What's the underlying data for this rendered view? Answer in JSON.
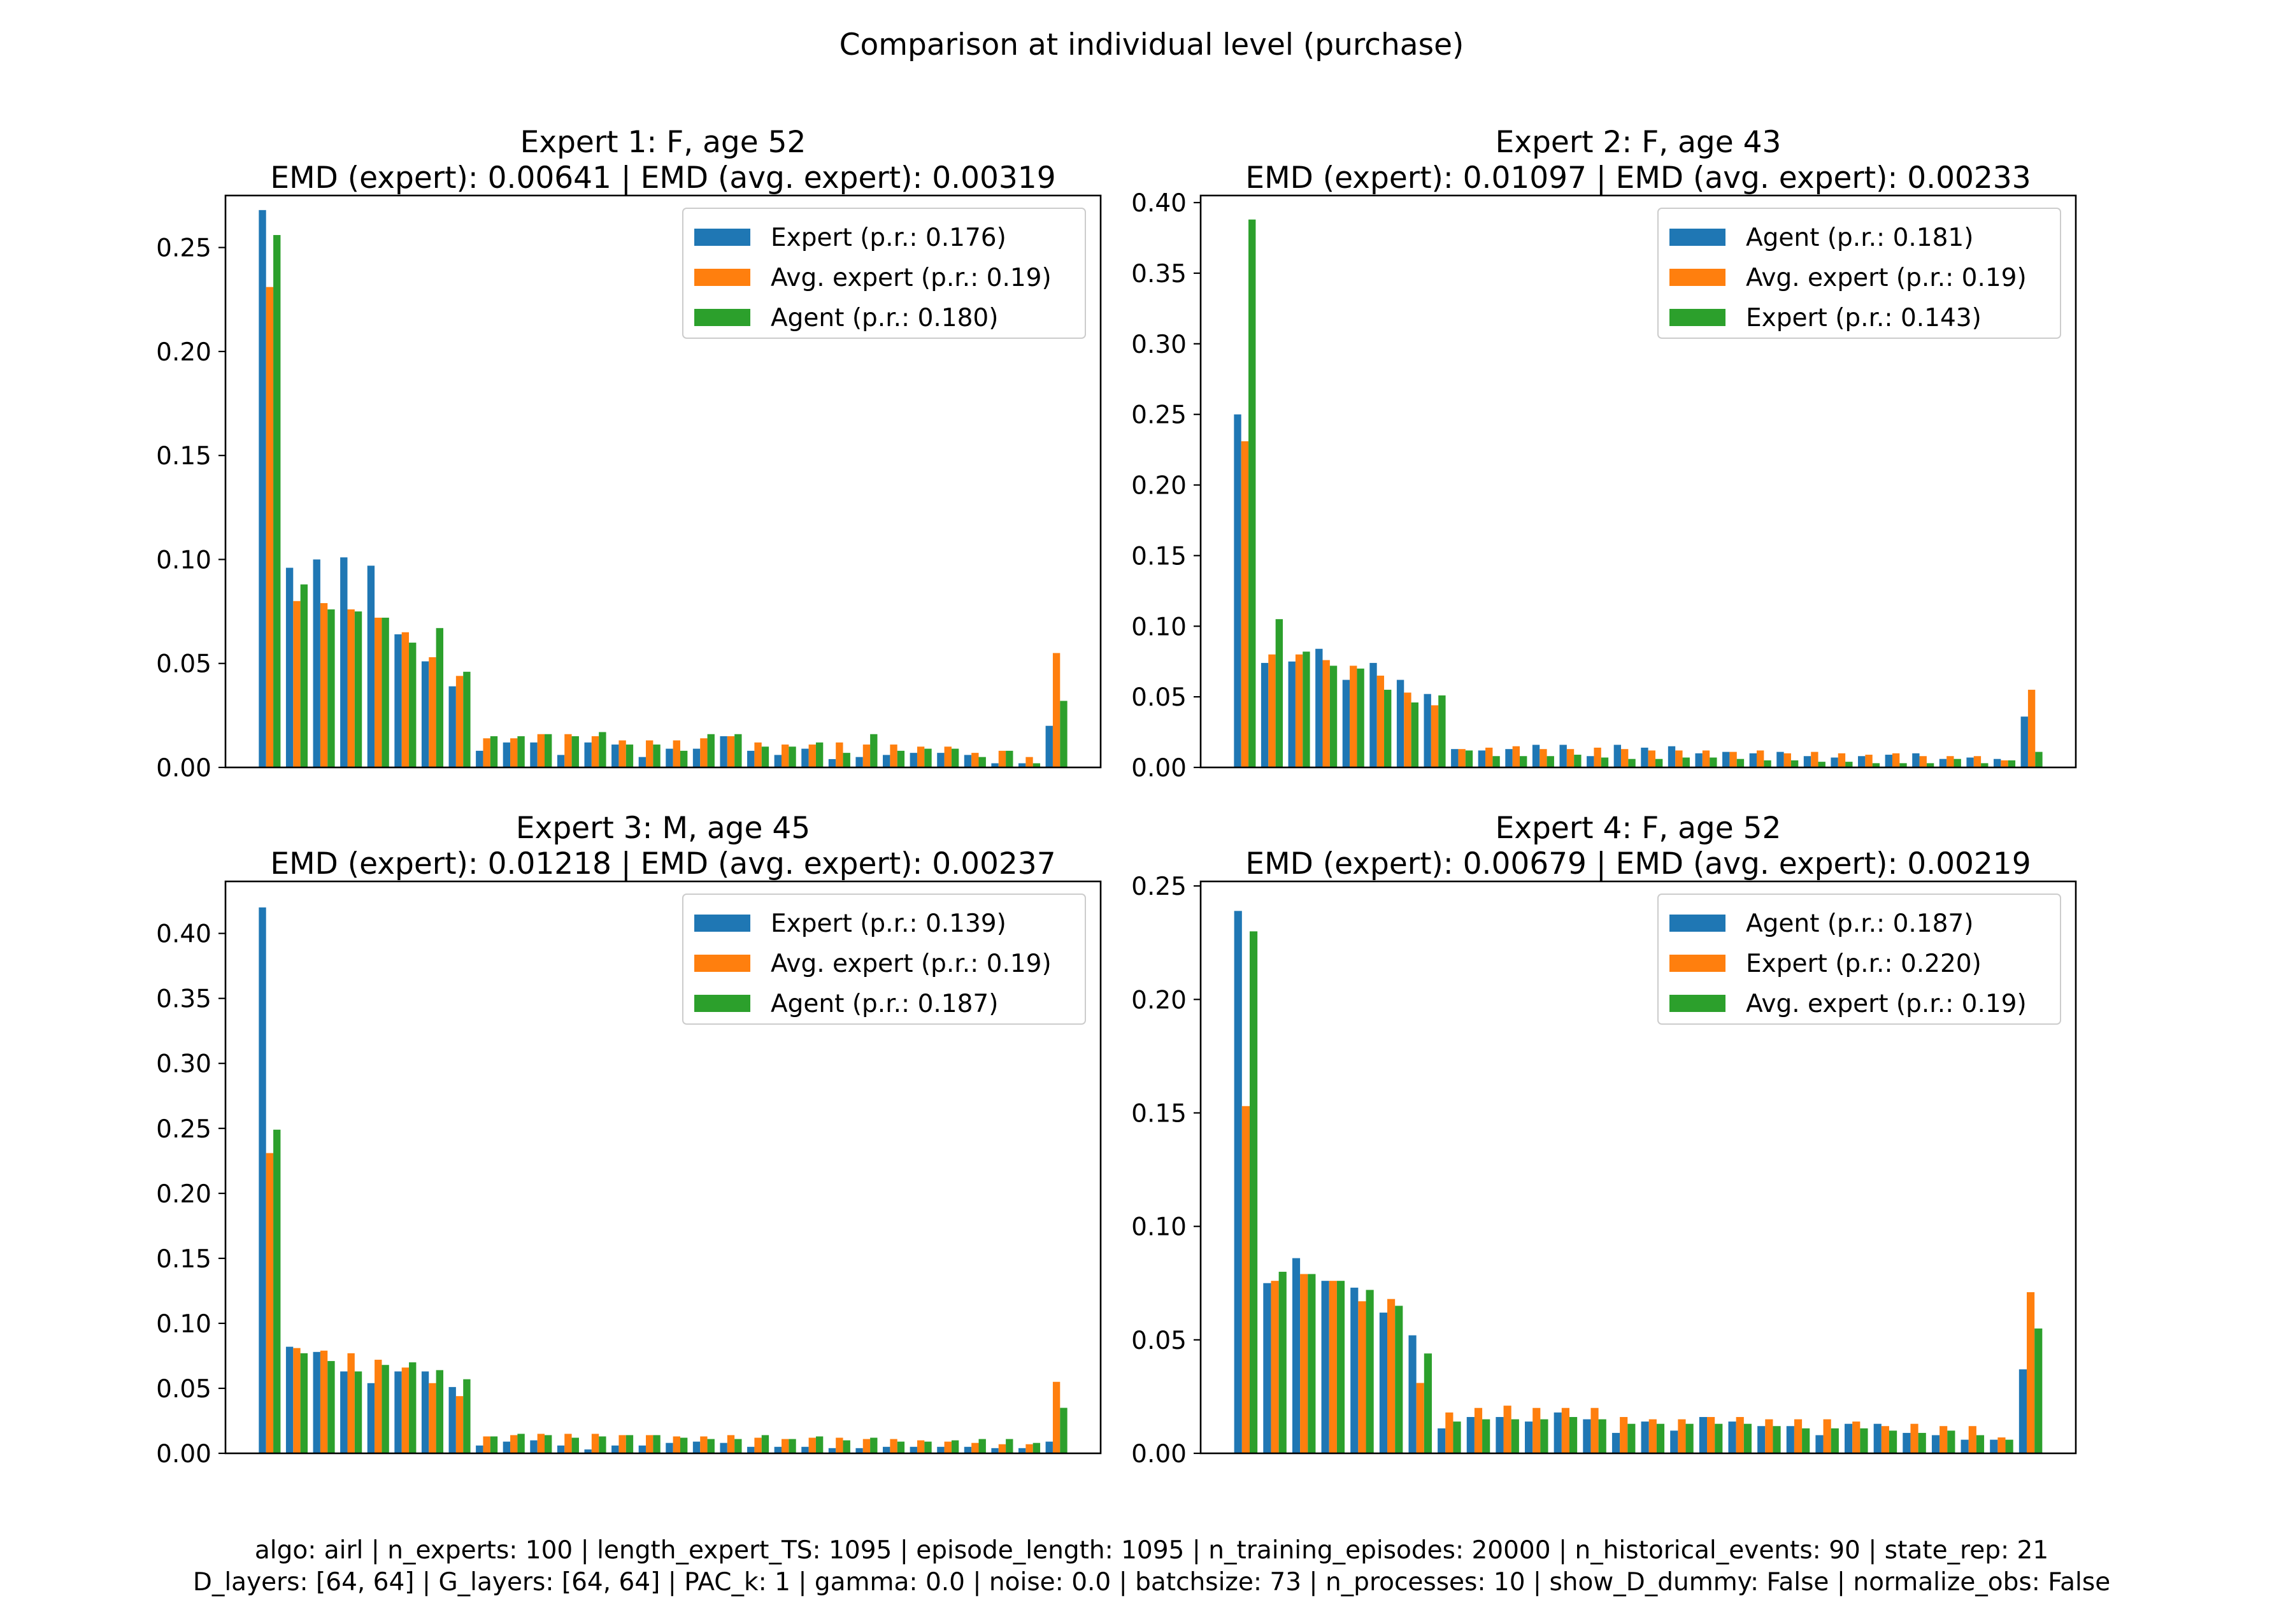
{
  "figure": {
    "title": "Comparison at individual level (purchase)",
    "footer_line1": "algo: airl | n_experts: 100 | length_expert_TS: 1095 | episode_length: 1095 | n_training_episodes: 20000 | n_historical_events: 90 | state_rep: 21",
    "footer_line2": "D_layers: [64, 64] | G_layers: [64, 64] | PAC_k: 1 | gamma: 0.0 | noise: 0.0 | batchsize: 73 | n_processes: 10 | show_D_dummy: False | normalize_obs: False"
  },
  "colors": {
    "blue": "#1f77b4",
    "orange": "#ff7f0e",
    "green": "#2ca02c"
  },
  "chart_data": [
    {
      "type": "bar",
      "title_line1": "Expert 1: F, age 52",
      "title_line2": "EMD (expert): 0.00641 | EMD (avg. expert): 0.00319",
      "ylim": [
        0,
        0.275
      ],
      "yticks": [
        "0.00",
        "0.05",
        "0.10",
        "0.15",
        "0.20",
        "0.25"
      ],
      "ytick_values": [
        0,
        0.05,
        0.1,
        0.15,
        0.2,
        0.25
      ],
      "xticks": [],
      "series": [
        {
          "name": "Expert (p.r.: 0.176)",
          "color": "#1f77b4",
          "values": [
            0.268,
            0.096,
            0.1,
            0.101,
            0.097,
            0.064,
            0.051,
            0.039,
            0.008,
            0.012,
            0.012,
            0.006,
            0.012,
            0.011,
            0.005,
            0.009,
            0.009,
            0.015,
            0.008,
            0.006,
            0.009,
            0.004,
            0.005,
            0.006,
            0.007,
            0.007,
            0.006,
            0.002,
            0.002,
            0.02
          ]
        },
        {
          "name": "Avg. expert (p.r.: 0.19)",
          "color": "#ff7f0e",
          "values": [
            0.231,
            0.08,
            0.079,
            0.076,
            0.072,
            0.065,
            0.053,
            0.044,
            0.014,
            0.014,
            0.016,
            0.016,
            0.015,
            0.013,
            0.013,
            0.013,
            0.014,
            0.015,
            0.012,
            0.011,
            0.011,
            0.012,
            0.011,
            0.011,
            0.01,
            0.01,
            0.007,
            0.008,
            0.005,
            0.055
          ]
        },
        {
          "name": "Agent (p.r.: 0.180)",
          "color": "#2ca02c",
          "values": [
            0.256,
            0.088,
            0.076,
            0.075,
            0.072,
            0.06,
            0.067,
            0.046,
            0.015,
            0.015,
            0.016,
            0.015,
            0.017,
            0.011,
            0.011,
            0.008,
            0.016,
            0.016,
            0.01,
            0.01,
            0.012,
            0.007,
            0.016,
            0.008,
            0.009,
            0.009,
            0.005,
            0.008,
            0.002,
            0.032
          ]
        }
      ]
    },
    {
      "type": "bar",
      "title_line1": "Expert 2: F, age 43",
      "title_line2": "EMD (expert): 0.01097 | EMD (avg. expert): 0.00233",
      "ylim": [
        0,
        0.405
      ],
      "yticks": [
        "0.00",
        "0.05",
        "0.10",
        "0.15",
        "0.20",
        "0.25",
        "0.30",
        "0.35",
        "0.40"
      ],
      "ytick_values": [
        0,
        0.05,
        0.1,
        0.15,
        0.2,
        0.25,
        0.3,
        0.35,
        0.4
      ],
      "xticks": [],
      "series": [
        {
          "name": "Agent (p.r.: 0.181)",
          "color": "#1f77b4",
          "values": [
            0.25,
            0.074,
            0.075,
            0.084,
            0.062,
            0.074,
            0.062,
            0.052,
            0.013,
            0.012,
            0.013,
            0.016,
            0.016,
            0.008,
            0.016,
            0.014,
            0.015,
            0.01,
            0.011,
            0.01,
            0.011,
            0.008,
            0.007,
            0.008,
            0.009,
            0.01,
            0.006,
            0.007,
            0.006,
            0.036
          ]
        },
        {
          "name": "Avg. expert (p.r.: 0.19)",
          "color": "#ff7f0e",
          "values": [
            0.231,
            0.08,
            0.08,
            0.076,
            0.072,
            0.065,
            0.053,
            0.044,
            0.013,
            0.014,
            0.015,
            0.013,
            0.013,
            0.014,
            0.013,
            0.012,
            0.012,
            0.012,
            0.011,
            0.012,
            0.01,
            0.011,
            0.01,
            0.009,
            0.01,
            0.008,
            0.008,
            0.008,
            0.005,
            0.055
          ]
        },
        {
          "name": "Expert (p.r.: 0.143)",
          "color": "#2ca02c",
          "values": [
            0.388,
            0.105,
            0.082,
            0.072,
            0.07,
            0.055,
            0.046,
            0.051,
            0.012,
            0.008,
            0.008,
            0.008,
            0.009,
            0.007,
            0.006,
            0.006,
            0.007,
            0.007,
            0.006,
            0.005,
            0.005,
            0.004,
            0.004,
            0.003,
            0.003,
            0.003,
            0.006,
            0.003,
            0.005,
            0.011
          ]
        }
      ]
    },
    {
      "type": "bar",
      "title_line1": "Expert 3: M, age 45",
      "title_line2": "EMD (expert): 0.01218 | EMD (avg. expert): 0.00237",
      "ylim": [
        0,
        0.44
      ],
      "yticks": [
        "0.00",
        "0.05",
        "0.10",
        "0.15",
        "0.20",
        "0.25",
        "0.30",
        "0.35",
        "0.40"
      ],
      "ytick_values": [
        0,
        0.05,
        0.1,
        0.15,
        0.2,
        0.25,
        0.3,
        0.35,
        0.4
      ],
      "xticks": [],
      "series": [
        {
          "name": "Expert (p.r.: 0.139)",
          "color": "#1f77b4",
          "values": [
            0.42,
            0.082,
            0.078,
            0.063,
            0.054,
            0.063,
            0.063,
            0.051,
            0.006,
            0.009,
            0.01,
            0.006,
            0.003,
            0.006,
            0.006,
            0.008,
            0.009,
            0.008,
            0.005,
            0.005,
            0.005,
            0.004,
            0.004,
            0.005,
            0.005,
            0.005,
            0.005,
            0.004,
            0.004,
            0.009
          ]
        },
        {
          "name": "Avg. expert (p.r.: 0.19)",
          "color": "#ff7f0e",
          "values": [
            0.231,
            0.081,
            0.079,
            0.077,
            0.072,
            0.066,
            0.054,
            0.044,
            0.013,
            0.014,
            0.015,
            0.015,
            0.015,
            0.014,
            0.014,
            0.013,
            0.013,
            0.014,
            0.012,
            0.011,
            0.012,
            0.012,
            0.011,
            0.011,
            0.01,
            0.009,
            0.008,
            0.007,
            0.007,
            0.055
          ]
        },
        {
          "name": "Agent (p.r.: 0.187)",
          "color": "#2ca02c",
          "values": [
            0.249,
            0.077,
            0.071,
            0.063,
            0.068,
            0.07,
            0.064,
            0.057,
            0.013,
            0.015,
            0.014,
            0.012,
            0.013,
            0.014,
            0.014,
            0.012,
            0.011,
            0.011,
            0.014,
            0.011,
            0.013,
            0.01,
            0.012,
            0.009,
            0.009,
            0.01,
            0.011,
            0.011,
            0.008,
            0.035
          ]
        }
      ]
    },
    {
      "type": "bar",
      "title_line1": "Expert 4: F, age 52",
      "title_line2": "EMD (expert): 0.00679 | EMD (avg. expert): 0.00219",
      "ylim": [
        0,
        0.252
      ],
      "yticks": [
        "0.00",
        "0.05",
        "0.10",
        "0.15",
        "0.20",
        "0.25"
      ],
      "ytick_values": [
        0,
        0.05,
        0.1,
        0.15,
        0.2,
        0.25
      ],
      "xticks": [],
      "series": [
        {
          "name": "Agent (p.r.: 0.187)",
          "color": "#1f77b4",
          "values": [
            0.239,
            0.075,
            0.086,
            0.076,
            0.073,
            0.062,
            0.052,
            0.011,
            0.016,
            0.016,
            0.014,
            0.018,
            0.015,
            0.009,
            0.014,
            0.01,
            0.016,
            0.014,
            0.012,
            0.012,
            0.008,
            0.013,
            0.013,
            0.009,
            0.008,
            0.006,
            0.006,
            0.037
          ]
        },
        {
          "name": "Expert (p.r.: 0.220)",
          "color": "#ff7f0e",
          "values": [
            0.153,
            0.076,
            0.079,
            0.076,
            0.067,
            0.068,
            0.031,
            0.018,
            0.02,
            0.021,
            0.02,
            0.02,
            0.02,
            0.016,
            0.015,
            0.015,
            0.016,
            0.016,
            0.015,
            0.015,
            0.015,
            0.014,
            0.012,
            0.013,
            0.012,
            0.012,
            0.007,
            0.071
          ]
        },
        {
          "name": "Avg. expert (p.r.: 0.19)",
          "color": "#2ca02c",
          "values": [
            0.23,
            0.08,
            0.079,
            0.076,
            0.072,
            0.065,
            0.044,
            0.014,
            0.015,
            0.015,
            0.015,
            0.016,
            0.015,
            0.013,
            0.013,
            0.013,
            0.013,
            0.013,
            0.012,
            0.011,
            0.011,
            0.011,
            0.01,
            0.009,
            0.01,
            0.008,
            0.006,
            0.055
          ]
        }
      ]
    }
  ]
}
